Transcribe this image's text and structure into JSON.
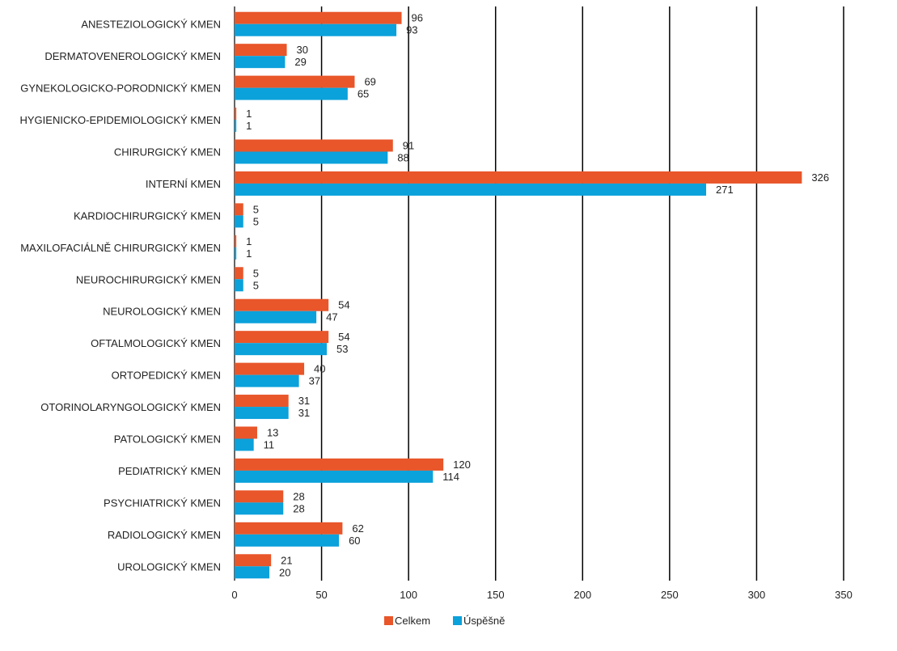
{
  "chart_data": {
    "type": "bar",
    "orientation": "horizontal",
    "categories": [
      "ANESTEZIOLOGICKÝ KMEN",
      "DERMATOVENEROLOGICKÝ KMEN",
      "GYNEKOLOGICKO-PORODNICKÝ KMEN",
      "HYGIENICKO-EPIDEMIOLOGICKÝ KMEN",
      "CHIRURGICKÝ KMEN",
      "INTERNÍ KMEN",
      "KARDIOCHIRURGICKÝ KMEN",
      "MAXILOFACIÁLNĚ CHIRURGICKÝ KMEN",
      "NEUROCHIRURGICKÝ KMEN",
      "NEUROLOGICKÝ KMEN",
      "OFTALMOLOGICKÝ KMEN",
      "ORTOPEDICKÝ KMEN",
      "OTORINOLARYNGOLOGICKÝ KMEN",
      "PATOLOGICKÝ KMEN",
      "PEDIATRICKÝ KMEN",
      "PSYCHIATRICKÝ KMEN",
      "RADIOLOGICKÝ KMEN",
      "UROLOGICKÝ KMEN"
    ],
    "series": [
      {
        "name": "Celkem",
        "color": "#e8562a",
        "values": [
          96,
          30,
          69,
          1,
          91,
          326,
          5,
          1,
          5,
          54,
          54,
          40,
          31,
          13,
          120,
          28,
          62,
          21
        ]
      },
      {
        "name": "Úspěšně",
        "color": "#0ba1db",
        "values": [
          93,
          29,
          65,
          1,
          88,
          271,
          5,
          1,
          5,
          47,
          53,
          37,
          31,
          11,
          114,
          28,
          60,
          20
        ]
      }
    ],
    "xticks": [
      "0",
      "50",
      "100",
      "150",
      "200",
      "250",
      "300",
      "350"
    ],
    "xlim": [
      0,
      350
    ],
    "title": "",
    "xlabel": "",
    "ylabel": "",
    "grid": "vertical",
    "legend_position": "bottom"
  }
}
